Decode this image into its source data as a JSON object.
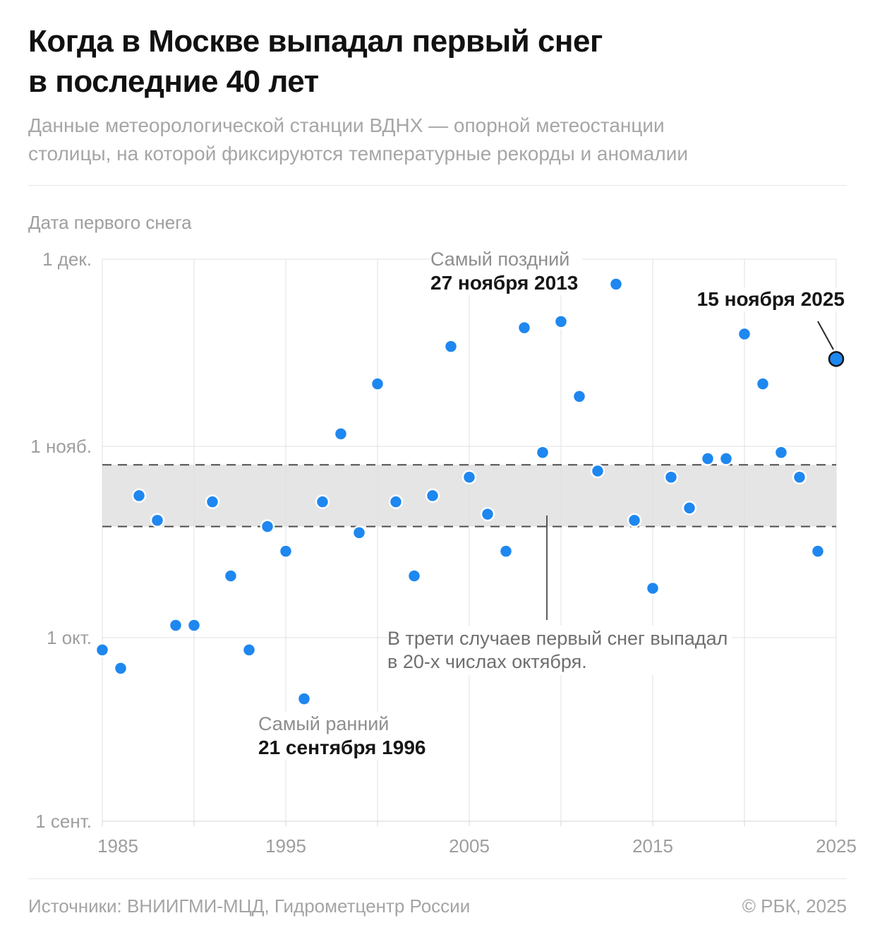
{
  "header": {
    "title_line1": "Когда в Москве выпадал первый снег",
    "title_line2": "в последние 40 лет",
    "subtitle_line1": "Данные метеорологической станции ВДНХ — опорной метеостанции",
    "subtitle_line2": "столицы, на которой фиксируются температурные рекорды и аномалии"
  },
  "chart_data": {
    "type": "scatter",
    "y_axis_title": "Дата первого снега",
    "x_range": [
      1985,
      2025
    ],
    "x_gridlines_every": 5,
    "x_ticks": [
      1985,
      1995,
      2005,
      2015,
      2025
    ],
    "y_ticks": [
      {
        "label": "1 дек.",
        "day": 91
      },
      {
        "label": "1 нояб.",
        "day": 61
      },
      {
        "label": "1 окт.",
        "day": 30
      },
      {
        "label": "1 сент.",
        "day": 0
      }
    ],
    "y_unit": "дата (дни после 1 сентября)",
    "points": [
      {
        "year": 1985,
        "date": "29 сентября"
      },
      {
        "year": 1986,
        "date": "26 сентября"
      },
      {
        "year": 1987,
        "date": "24 октября"
      },
      {
        "year": 1988,
        "date": "20 октября"
      },
      {
        "year": 1989,
        "date": "3 октября"
      },
      {
        "year": 1990,
        "date": "3 октября"
      },
      {
        "year": 1991,
        "date": "23 октября"
      },
      {
        "year": 1992,
        "date": "11 октября"
      },
      {
        "year": 1993,
        "date": "29 сентября"
      },
      {
        "year": 1994,
        "date": "19 октября"
      },
      {
        "year": 1995,
        "date": "15 октября"
      },
      {
        "year": 1996,
        "date": "21 сентября"
      },
      {
        "year": 1997,
        "date": "23 октября"
      },
      {
        "year": 1998,
        "date": "3 ноября"
      },
      {
        "year": 1999,
        "date": "18 октября"
      },
      {
        "year": 2000,
        "date": "11 ноября"
      },
      {
        "year": 2001,
        "date": "23 октября"
      },
      {
        "year": 2002,
        "date": "11 октября"
      },
      {
        "year": 2003,
        "date": "24 октября"
      },
      {
        "year": 2004,
        "date": "17 ноября"
      },
      {
        "year": 2005,
        "date": "27 октября"
      },
      {
        "year": 2006,
        "date": "21 октября"
      },
      {
        "year": 2007,
        "date": "15 октября"
      },
      {
        "year": 2008,
        "date": "20 ноября"
      },
      {
        "year": 2009,
        "date": "31 октября"
      },
      {
        "year": 2010,
        "date": "21 ноября"
      },
      {
        "year": 2011,
        "date": "9 ноября"
      },
      {
        "year": 2012,
        "date": "28 октября"
      },
      {
        "year": 2013,
        "date": "27 ноября"
      },
      {
        "year": 2014,
        "date": "20 октября"
      },
      {
        "year": 2015,
        "date": "9 октября"
      },
      {
        "year": 2016,
        "date": "27 октября"
      },
      {
        "year": 2017,
        "date": "22 октября"
      },
      {
        "year": 2018,
        "date": "30 октября"
      },
      {
        "year": 2019,
        "date": "30 октября"
      },
      {
        "year": 2020,
        "date": "19 ноября"
      },
      {
        "year": 2021,
        "date": "11 ноября"
      },
      {
        "year": 2022,
        "date": "31 октября"
      },
      {
        "year": 2023,
        "date": "27 октября"
      },
      {
        "year": 2024,
        "date": "15 октября"
      },
      {
        "year": 2025,
        "date": "15 ноября"
      }
    ],
    "highlighted_year": 2025,
    "band": {
      "from_date": "19 октября",
      "to_date": "29 октября",
      "note_line1": "В трети случаев первый снег выпадал",
      "note_line2": "в 20-х числах октября."
    },
    "annotations": {
      "latest": {
        "label": "Самый поздний",
        "date": "27 ноября 2013",
        "year": 2013
      },
      "earliest": {
        "label": "Самый ранний",
        "date": "21 сентября 1996",
        "year": 1996
      },
      "current": {
        "date": "15 ноября 2025",
        "year": 2025
      }
    }
  },
  "footer": {
    "sources": "Источники: ВНИИГМИ-МЦД, Гидрометцентр России",
    "copyright": "© РБК, 2025"
  },
  "colors": {
    "point": "#1e87f0",
    "point_stroke": "#ffffff",
    "highlight_stroke": "#141414",
    "band": "#e5e5e5",
    "grid": "#e0e0e0",
    "axis": "#d6d6d6",
    "dashed": "#4d4d4d",
    "callout": "#2a2a2a"
  }
}
